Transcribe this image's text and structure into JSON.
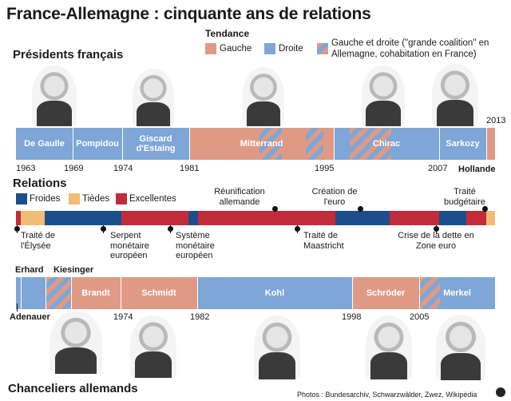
{
  "title": "France-Allemagne : cinquante ans de relations",
  "presidents": {
    "heading": "Présidents français",
    "segments": [
      {
        "label": "De Gaulle",
        "tendance": "droite"
      },
      {
        "label": "Pompidou",
        "tendance": "droite"
      },
      {
        "label": "Giscard d'Estaing",
        "tendance": "droite"
      },
      {
        "label": "Mitterrand",
        "tendance": "gauche-cohabitation"
      },
      {
        "label": "Chirac",
        "tendance": "droite-cohabitation"
      },
      {
        "label": "Sarkozy",
        "tendance": "droite"
      },
      {
        "label": "",
        "tendance": "gauche"
      }
    ],
    "years": [
      "1963",
      "1969",
      "1974",
      "1981",
      "1995",
      "2007"
    ],
    "year_top": "2013",
    "hollande": "Hollande"
  },
  "tendance": {
    "heading": "Tendance",
    "gauche": "Gauche",
    "droite": "Droite",
    "mixte": "Gauche et droite (\"grande coalition\" en Allemagne, cohabitation en France)",
    "colors": {
      "gauche": "#df9a86",
      "droite": "#7ea6d6"
    }
  },
  "relations": {
    "heading": "Relations",
    "froides": "Froides",
    "tiedes": "Tièdes",
    "excellentes": "Excellentes",
    "colors": {
      "froides": "#1b4e8d",
      "tiedes": "#f1bd74",
      "excellentes": "#c22c3a"
    },
    "events_below": [
      "Traité de l'Élysée",
      "Serpent monétaire européen",
      "Système monétaire européen",
      "Traité de Maastricht",
      "Crise de la dette en Zone euro"
    ],
    "events_above": [
      "Réunification allemande",
      "Création de l'euro",
      "Traité budgétaire"
    ]
  },
  "chanceliers": {
    "heading": "Chanceliers allemands",
    "segments": [
      {
        "label": "",
        "tendance": "droite"
      },
      {
        "label": "",
        "tendance": "droite"
      },
      {
        "label": "",
        "tendance": "mixte"
      },
      {
        "label": "Brandt",
        "tendance": "gauche"
      },
      {
        "label": "Schmidt",
        "tendance": "gauche"
      },
      {
        "label": "Kohl",
        "tendance": "droite"
      },
      {
        "label": "Schröder",
        "tendance": "gauche"
      },
      {
        "label": "Merkel",
        "tendance": "mixte-droite"
      }
    ],
    "erhard": "Erhard",
    "kiesinger": "Kiesinger",
    "adenauer": "Adenauer",
    "years": [
      "1974",
      "1982",
      "1998",
      "2005"
    ]
  },
  "credit": "Photos : Bundesarchiv, Schwarzwälder, Zwez, Wikipédia"
}
